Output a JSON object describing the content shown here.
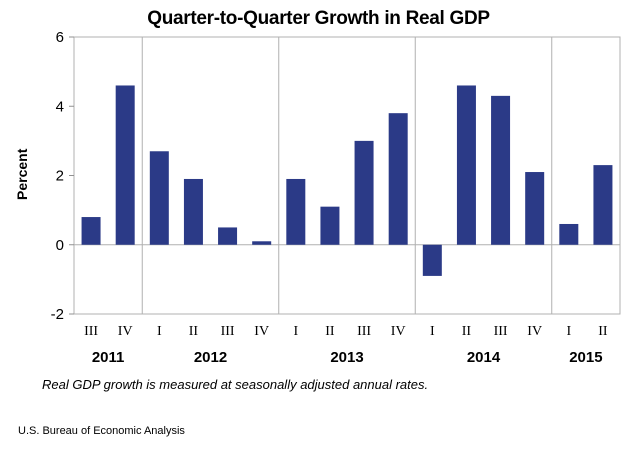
{
  "chart_data": {
    "type": "bar",
    "title": "Quarter-to-Quarter Growth in Real GDP",
    "xlabel": "",
    "ylabel": "Percent",
    "ylim": [
      -2,
      6
    ],
    "yticks": [
      -2,
      0,
      2,
      4,
      6
    ],
    "grid": false,
    "legend": "none",
    "bar_color": "#2b3a87",
    "categories": [
      "III",
      "IV",
      "I",
      "II",
      "III",
      "IV",
      "I",
      "II",
      "III",
      "IV",
      "I",
      "II",
      "III",
      "IV",
      "I",
      "II"
    ],
    "values": [
      0.8,
      4.6,
      2.7,
      1.9,
      0.5,
      0.1,
      1.9,
      1.1,
      3.0,
      3.8,
      -0.9,
      4.6,
      4.3,
      2.1,
      0.6,
      2.3
    ],
    "years": [
      {
        "label": "2011",
        "start": 0,
        "end": 1
      },
      {
        "label": "2012",
        "start": 2,
        "end": 5
      },
      {
        "label": "2013",
        "start": 6,
        "end": 9
      },
      {
        "label": "2014",
        "start": 10,
        "end": 13
      },
      {
        "label": "2015",
        "start": 14,
        "end": 15
      }
    ]
  },
  "note": "Real GDP growth is measured at seasonally adjusted annual rates.",
  "source": "U.S. Bureau of Economic Analysis"
}
